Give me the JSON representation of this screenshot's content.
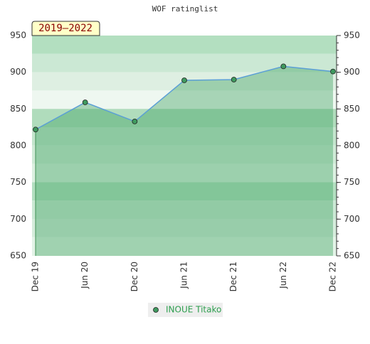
{
  "chart_data": {
    "type": "area",
    "title": "WOF ratinglist",
    "badge": "2019–2022",
    "categories": [
      "Dec 19",
      "Jun 20",
      "Dec 20",
      "Jun 21",
      "Dec 21",
      "Jun 22",
      "Dec 22"
    ],
    "series": [
      {
        "name": "INOUE Titako",
        "color": "#5b9fd6",
        "values": [
          822,
          859,
          833,
          889,
          890,
          908,
          901
        ]
      }
    ],
    "ylim": [
      650,
      950
    ],
    "yticks": [
      650,
      700,
      750,
      800,
      850,
      900,
      950
    ],
    "legend": "bottom"
  }
}
